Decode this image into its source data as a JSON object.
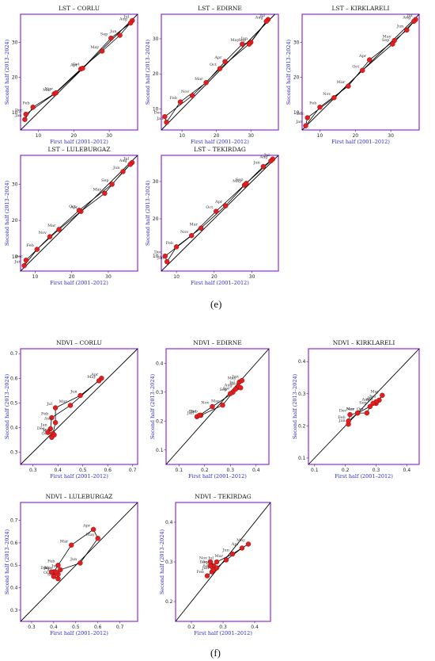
{
  "figure_labels": {
    "e": "(e)",
    "f": "(f)"
  },
  "common": {
    "xlabel": "First half (2001–2012)",
    "ylabel": "Second half (2013–2024)",
    "frame_color": "#8a2be2",
    "diagonal_color": "#000000",
    "point_color": "#e02020",
    "path_color": "#000000",
    "axis_label_color": "#2a2ad0"
  },
  "chart_data": [
    {
      "type": "scatter",
      "title": "LST – CORLU",
      "xlim": [
        5,
        38
      ],
      "ylim": [
        5,
        38
      ],
      "xticks": [
        10,
        20,
        30
      ],
      "yticks": [
        10,
        20,
        30
      ],
      "points": [
        {
          "label": "Jan",
          "x": 6.2,
          "y": 8.0
        },
        {
          "label": "Feb",
          "x": 8.5,
          "y": 11.5
        },
        {
          "label": "Mar",
          "x": 14.5,
          "y": 15.3
        },
        {
          "label": "Apr",
          "x": 22.0,
          "y": 22.4
        },
        {
          "label": "May",
          "x": 28.0,
          "y": 27.5
        },
        {
          "label": "Jun",
          "x": 33.0,
          "y": 32.0
        },
        {
          "label": "Jul",
          "x": 36.5,
          "y": 36.2
        },
        {
          "label": "Aug",
          "x": 36.0,
          "y": 35.5
        },
        {
          "label": "Sep",
          "x": 30.5,
          "y": 31.2
        },
        {
          "label": "Oct",
          "x": 22.5,
          "y": 22.6
        },
        {
          "label": "Nov",
          "x": 15.0,
          "y": 15.6
        },
        {
          "label": "Dec",
          "x": 6.5,
          "y": 9.5
        }
      ]
    },
    {
      "type": "scatter",
      "title": "LST – EDIRNE",
      "xlim": [
        4,
        38
      ],
      "ylim": [
        4,
        37
      ],
      "xticks": [
        10,
        20,
        30
      ],
      "yticks": [
        10,
        20,
        30
      ],
      "points": [
        {
          "label": "Jan",
          "x": 5.5,
          "y": 6.2
        },
        {
          "label": "Feb",
          "x": 9.5,
          "y": 12.0
        },
        {
          "label": "Mar",
          "x": 17.0,
          "y": 17.5
        },
        {
          "label": "Apr",
          "x": 22.5,
          "y": 23.5
        },
        {
          "label": "May",
          "x": 27.5,
          "y": 28.5
        },
        {
          "label": "Jun",
          "x": 30.0,
          "y": 29.0
        },
        {
          "label": "Jul",
          "x": 35.0,
          "y": 35.5
        },
        {
          "label": "Aug",
          "x": 34.5,
          "y": 35.0
        },
        {
          "label": "Sep",
          "x": 29.5,
          "y": 28.5
        },
        {
          "label": "Oct",
          "x": 21.0,
          "y": 21.5
        },
        {
          "label": "Nov",
          "x": 13.0,
          "y": 13.8
        },
        {
          "label": "Dec",
          "x": 5.0,
          "y": 7.8
        }
      ]
    },
    {
      "type": "scatter",
      "title": "LST – KIRKLARELI",
      "xlim": [
        5,
        38
      ],
      "ylim": [
        5,
        38
      ],
      "xticks": [
        10,
        20,
        30
      ],
      "yticks": [
        10,
        20,
        30
      ],
      "points": [
        {
          "label": "Jan",
          "x": 6.0,
          "y": 6.2
        },
        {
          "label": "Feb",
          "x": 10.0,
          "y": 11.5
        },
        {
          "label": "Mar",
          "x": 18.0,
          "y": 17.5
        },
        {
          "label": "Apr",
          "x": 24.0,
          "y": 25.0
        },
        {
          "label": "May",
          "x": 31.0,
          "y": 30.5
        },
        {
          "label": "Jun",
          "x": 34.5,
          "y": 33.5
        },
        {
          "label": "Jul",
          "x": 37.0,
          "y": 36.5
        },
        {
          "label": "Aug",
          "x": 36.5,
          "y": 36.0
        },
        {
          "label": "Sep",
          "x": 30.5,
          "y": 29.5
        },
        {
          "label": "Oct",
          "x": 22.0,
          "y": 22.0
        },
        {
          "label": "Nov",
          "x": 14.0,
          "y": 14.2
        },
        {
          "label": "Dec",
          "x": 6.5,
          "y": 8.5
        }
      ]
    },
    {
      "type": "scatter",
      "title": "LST – LULEBURGAZ",
      "xlim": [
        6,
        38
      ],
      "ylim": [
        6,
        38
      ],
      "xticks": [
        10,
        20,
        30
      ],
      "yticks": [
        10,
        20,
        30
      ],
      "points": [
        {
          "label": "Jan",
          "x": 7.0,
          "y": 7.5
        },
        {
          "label": "Feb",
          "x": 10.5,
          "y": 12.0
        },
        {
          "label": "Mar",
          "x": 16.5,
          "y": 17.5
        },
        {
          "label": "Apr",
          "x": 22.5,
          "y": 22.5
        },
        {
          "label": "May",
          "x": 29.0,
          "y": 27.5
        },
        {
          "label": "Jun",
          "x": 34.0,
          "y": 33.5
        },
        {
          "label": "Jul",
          "x": 36.5,
          "y": 36.0
        },
        {
          "label": "Aug",
          "x": 36.0,
          "y": 35.5
        },
        {
          "label": "Sep",
          "x": 31.0,
          "y": 30.0
        },
        {
          "label": "Oct",
          "x": 22.0,
          "y": 22.8
        },
        {
          "label": "Nov",
          "x": 14.0,
          "y": 15.5
        },
        {
          "label": "Dec",
          "x": 7.5,
          "y": 9.0
        }
      ]
    },
    {
      "type": "scatter",
      "title": "LST – TEKIRDAG",
      "xlim": [
        6,
        37
      ],
      "ylim": [
        6,
        37
      ],
      "xticks": [
        10,
        20,
        30
      ],
      "yticks": [
        10,
        20,
        30
      ],
      "points": [
        {
          "label": "Jan",
          "x": 7.5,
          "y": 8.5
        },
        {
          "label": "Feb",
          "x": 10.0,
          "y": 12.5
        },
        {
          "label": "Mar",
          "x": 16.5,
          "y": 17.5
        },
        {
          "label": "Apr",
          "x": 23.0,
          "y": 23.5
        },
        {
          "label": "May",
          "x": 28.0,
          "y": 29.0
        },
        {
          "label": "Jun",
          "x": 33.0,
          "y": 34.0
        },
        {
          "label": "Jul",
          "x": 35.5,
          "y": 36.0
        },
        {
          "label": "Aug",
          "x": 35.0,
          "y": 35.5
        },
        {
          "label": "Sep",
          "x": 28.5,
          "y": 29.5
        },
        {
          "label": "Oct",
          "x": 20.5,
          "y": 22.0
        },
        {
          "label": "Nov",
          "x": 14.0,
          "y": 15.5
        },
        {
          "label": "Dec",
          "x": 7.0,
          "y": 10.0
        }
      ]
    },
    {
      "type": "scatter",
      "title": "NDVI – CORLU",
      "xlim": [
        0.25,
        0.72
      ],
      "ylim": [
        0.25,
        0.72
      ],
      "xticks": [
        0.3,
        0.4,
        0.5,
        0.6,
        0.7
      ],
      "yticks": [
        0.3,
        0.4,
        0.5,
        0.6,
        0.7
      ],
      "points": [
        {
          "label": "Jan",
          "x": 0.37,
          "y": 0.395
        },
        {
          "label": "Feb",
          "x": 0.375,
          "y": 0.44
        },
        {
          "label": "Mar",
          "x": 0.45,
          "y": 0.49
        },
        {
          "label": "Apr",
          "x": 0.575,
          "y": 0.6
        },
        {
          "label": "May",
          "x": 0.565,
          "y": 0.59
        },
        {
          "label": "Jun",
          "x": 0.49,
          "y": 0.53
        },
        {
          "label": "Jul",
          "x": 0.39,
          "y": 0.48
        },
        {
          "label": "Aug",
          "x": 0.39,
          "y": 0.42
        },
        {
          "label": "Sep",
          "x": 0.38,
          "y": 0.375
        },
        {
          "label": "Oct",
          "x": 0.375,
          "y": 0.36
        },
        {
          "label": "Nov",
          "x": 0.385,
          "y": 0.37
        },
        {
          "label": "Dec",
          "x": 0.36,
          "y": 0.38
        }
      ]
    },
    {
      "type": "scatter",
      "title": "NDVI – EDIRNE",
      "xlim": [
        0.05,
        0.45
      ],
      "ylim": [
        0.05,
        0.45
      ],
      "xticks": [
        0.1,
        0.2,
        0.3,
        0.4
      ],
      "yticks": [
        0.1,
        0.2,
        0.3,
        0.4
      ],
      "points": [
        {
          "label": "Jan",
          "x": 0.17,
          "y": 0.215
        },
        {
          "label": "Feb",
          "x": 0.185,
          "y": 0.22
        },
        {
          "label": "Mar",
          "x": 0.27,
          "y": 0.255
        },
        {
          "label": "Apr",
          "x": 0.31,
          "y": 0.3
        },
        {
          "label": "May",
          "x": 0.335,
          "y": 0.335
        },
        {
          "label": "Jun",
          "x": 0.345,
          "y": 0.34
        },
        {
          "label": "Jul",
          "x": 0.33,
          "y": 0.32
        },
        {
          "label": "Aug",
          "x": 0.32,
          "y": 0.31
        },
        {
          "label": "Sep",
          "x": 0.3,
          "y": 0.295
        },
        {
          "label": "Oct",
          "x": 0.34,
          "y": 0.315
        },
        {
          "label": "Nov",
          "x": 0.23,
          "y": 0.25
        },
        {
          "label": "Dec",
          "x": 0.18,
          "y": 0.22
        }
      ]
    },
    {
      "type": "scatter",
      "title": "NDVI – KIRKLARELI",
      "xlim": [
        0.08,
        0.44
      ],
      "ylim": [
        0.08,
        0.44
      ],
      "xticks": [
        0.1,
        0.2,
        0.3,
        0.4
      ],
      "yticks": [
        0.1,
        0.2,
        0.3,
        0.4
      ],
      "points": [
        {
          "label": "Jan",
          "x": 0.21,
          "y": 0.205
        },
        {
          "label": "Feb",
          "x": 0.21,
          "y": 0.215
        },
        {
          "label": "Mar",
          "x": 0.24,
          "y": 0.24
        },
        {
          "label": "Apr",
          "x": 0.3,
          "y": 0.27
        },
        {
          "label": "May",
          "x": 0.32,
          "y": 0.295
        },
        {
          "label": "Jun",
          "x": 0.31,
          "y": 0.28
        },
        {
          "label": "Jul",
          "x": 0.3,
          "y": 0.275
        },
        {
          "label": "Aug",
          "x": 0.29,
          "y": 0.27
        },
        {
          "label": "Sep",
          "x": 0.28,
          "y": 0.26
        },
        {
          "label": "Oct",
          "x": 0.27,
          "y": 0.24
        },
        {
          "label": "Nov",
          "x": 0.24,
          "y": 0.24
        },
        {
          "label": "Dec",
          "x": 0.215,
          "y": 0.235
        }
      ]
    },
    {
      "type": "scatter",
      "title": "NDVI – LULEBURGAZ",
      "xlim": [
        0.25,
        0.78
      ],
      "ylim": [
        0.25,
        0.78
      ],
      "xticks": [
        0.3,
        0.4,
        0.5,
        0.6,
        0.7
      ],
      "yticks": [
        0.3,
        0.4,
        0.5,
        0.6,
        0.7
      ],
      "points": [
        {
          "label": "Jan",
          "x": 0.4,
          "y": 0.47
        },
        {
          "label": "Feb",
          "x": 0.42,
          "y": 0.5
        },
        {
          "label": "Mar",
          "x": 0.48,
          "y": 0.59
        },
        {
          "label": "Apr",
          "x": 0.58,
          "y": 0.66
        },
        {
          "label": "May",
          "x": 0.6,
          "y": 0.62
        },
        {
          "label": "Jun",
          "x": 0.52,
          "y": 0.51
        },
        {
          "label": "Jul",
          "x": 0.43,
          "y": 0.48
        },
        {
          "label": "Aug",
          "x": 0.42,
          "y": 0.46
        },
        {
          "label": "Sep",
          "x": 0.42,
          "y": 0.44
        },
        {
          "label": "Oct",
          "x": 0.4,
          "y": 0.45
        },
        {
          "label": "Nov",
          "x": 0.41,
          "y": 0.47
        },
        {
          "label": "Dec",
          "x": 0.39,
          "y": 0.47
        }
      ]
    },
    {
      "type": "scatter",
      "title": "NDVI – TEKIRDAG",
      "xlim": [
        0.15,
        0.45
      ],
      "ylim": [
        0.15,
        0.45
      ],
      "xticks": [
        0.2,
        0.3,
        0.4
      ],
      "yticks": [
        0.2,
        0.3,
        0.4
      ],
      "points": [
        {
          "label": "Jan",
          "x": 0.265,
          "y": 0.275
        },
        {
          "label": "Feb",
          "x": 0.25,
          "y": 0.265
        },
        {
          "label": "Mar",
          "x": 0.31,
          "y": 0.305
        },
        {
          "label": "Apr",
          "x": 0.36,
          "y": 0.335
        },
        {
          "label": "May",
          "x": 0.38,
          "y": 0.345
        },
        {
          "label": "Jun",
          "x": 0.33,
          "y": 0.32
        },
        {
          "label": "Jul",
          "x": 0.28,
          "y": 0.3
        },
        {
          "label": "Aug",
          "x": 0.27,
          "y": 0.29
        },
        {
          "label": "Sep",
          "x": 0.27,
          "y": 0.28
        },
        {
          "label": "Oct",
          "x": 0.28,
          "y": 0.285
        },
        {
          "label": "Nov",
          "x": 0.26,
          "y": 0.3
        },
        {
          "label": "Dec",
          "x": 0.26,
          "y": 0.29
        }
      ]
    }
  ]
}
